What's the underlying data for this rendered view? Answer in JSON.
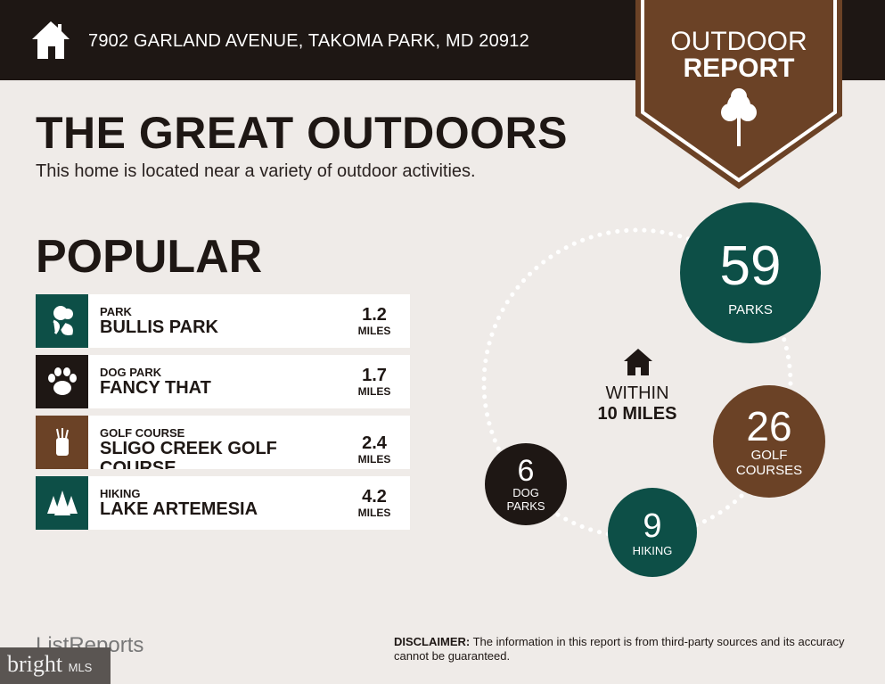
{
  "header": {
    "address": "7902 GARLAND AVENUE, TAKOMA PARK, MD 20912",
    "icon": "home-icon"
  },
  "badge": {
    "line1": "OUTDOOR",
    "line2": "REPORT",
    "icon": "tree-icon"
  },
  "title": "THE GREAT OUTDOORS",
  "subtitle": "This home is located near a variety of outdoor activities.",
  "popular": {
    "heading": "POPULAR",
    "items": [
      {
        "category": "PARK",
        "name": "BULLIS PARK",
        "distance": "1.2",
        "unit": "MILES",
        "icon": "park-icon",
        "color": "#0d4f47"
      },
      {
        "category": "DOG PARK",
        "name": "FANCY THAT",
        "distance": "1.7",
        "unit": "MILES",
        "icon": "paw-icon",
        "color": "#1e1714"
      },
      {
        "category": "GOLF COURSE",
        "name": "SLIGO CREEK GOLF COURSE",
        "distance": "2.4",
        "unit": "MILES",
        "icon": "golf-bag-icon",
        "color": "#6b4226"
      },
      {
        "category": "HIKING",
        "name": "LAKE ARTEMESIA",
        "distance": "4.2",
        "unit": "MILES",
        "icon": "trees-icon",
        "color": "#0d4f47"
      }
    ]
  },
  "nearby": {
    "within": "WITHIN",
    "radius": "10 MILES",
    "counts": [
      {
        "value": "59",
        "label": "PARKS"
      },
      {
        "value": "26",
        "label": "GOLF COURSES"
      },
      {
        "value": "9",
        "label": "HIKING"
      },
      {
        "value": "6",
        "label": "DOG PARKS"
      }
    ]
  },
  "footer": {
    "brand": "ListReports",
    "disclaimer_label": "DISCLAIMER:",
    "disclaimer": " The information in this report is from third-party sources and its accuracy cannot be guaranteed.",
    "watermark": "bright",
    "watermark_suffix": "MLS"
  },
  "colors": {
    "dark": "#1e1714",
    "brown": "#6b4226",
    "teal": "#0d4f47",
    "background": "#efebe8"
  }
}
